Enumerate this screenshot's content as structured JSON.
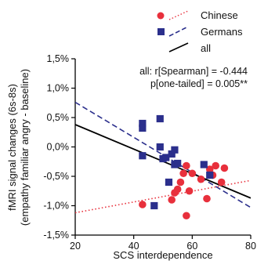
{
  "chart_data": {
    "type": "scatter",
    "xlabel": "SCS interdependence",
    "ylabel": [
      "fMRI signal changes (6s-8s)",
      "(empathy familiar angry - baseline)"
    ],
    "xlim": [
      20,
      80
    ],
    "ylim": [
      -1.5,
      1.5
    ],
    "x_ticks": [
      20,
      40,
      60,
      80
    ],
    "y_ticks": [
      -1.5,
      -1.0,
      -0.5,
      0.0,
      0.5,
      1.0,
      1.5
    ],
    "x_tick_labels": [
      "20",
      "40",
      "60",
      "80"
    ],
    "y_tick_labels": [
      "-1,5%",
      "-1,0%",
      "-0,5%",
      "0,0%",
      "0,5%",
      "1,0%",
      "1,5%"
    ],
    "grid": false,
    "legend_position": "top-right",
    "annotation": [
      "all: r[Spearman] = -0.444",
      "p[one-tailed] = 0.005**"
    ],
    "series": [
      {
        "name": "Chinese",
        "marker": "circle",
        "color": "#e8303c",
        "points": [
          {
            "x": 43,
            "y": -0.98
          },
          {
            "x": 53,
            "y": -0.9
          },
          {
            "x": 54,
            "y": -0.78
          },
          {
            "x": 55,
            "y": -0.72
          },
          {
            "x": 56,
            "y": -0.6
          },
          {
            "x": 57,
            "y": -0.45
          },
          {
            "x": 58,
            "y": -1.17
          },
          {
            "x": 58,
            "y": -0.32
          },
          {
            "x": 59,
            "y": -0.75
          },
          {
            "x": 60,
            "y": -0.45
          },
          {
            "x": 63,
            "y": -0.55
          },
          {
            "x": 65,
            "y": -0.88
          },
          {
            "x": 66,
            "y": -0.38
          },
          {
            "x": 67,
            "y": -0.48
          },
          {
            "x": 68,
            "y": -0.32
          },
          {
            "x": 70,
            "y": -0.6
          },
          {
            "x": 71,
            "y": -0.36
          }
        ]
      },
      {
        "name": "Germans",
        "marker": "square",
        "color": "#2b2f8c",
        "points": [
          {
            "x": 43,
            "y": 0.4
          },
          {
            "x": 43,
            "y": 0.32
          },
          {
            "x": 43,
            "y": -0.15
          },
          {
            "x": 47,
            "y": -1.0
          },
          {
            "x": 49,
            "y": 0.48
          },
          {
            "x": 49,
            "y": 0.0
          },
          {
            "x": 50,
            "y": -0.2
          },
          {
            "x": 51,
            "y": -0.18
          },
          {
            "x": 52,
            "y": -0.6
          },
          {
            "x": 53,
            "y": -0.12
          },
          {
            "x": 54,
            "y": -0.05
          },
          {
            "x": 54,
            "y": -0.3
          },
          {
            "x": 55,
            "y": -0.28
          },
          {
            "x": 64,
            "y": -0.3
          },
          {
            "x": 66,
            "y": -0.48
          }
        ]
      }
    ],
    "fit_lines": [
      {
        "name": "Chinese",
        "style": "dotted",
        "color": "#e8303c",
        "x": [
          20,
          80
        ],
        "y": [
          -1.12,
          -0.57
        ]
      },
      {
        "name": "Germans",
        "style": "dashed",
        "color": "#2b2f8c",
        "x": [
          20,
          80
        ],
        "y": [
          0.76,
          -1.03
        ]
      },
      {
        "name": "all",
        "style": "solid",
        "color": "#000000",
        "x": [
          20,
          80
        ],
        "y": [
          0.38,
          -0.87
        ]
      }
    ]
  }
}
